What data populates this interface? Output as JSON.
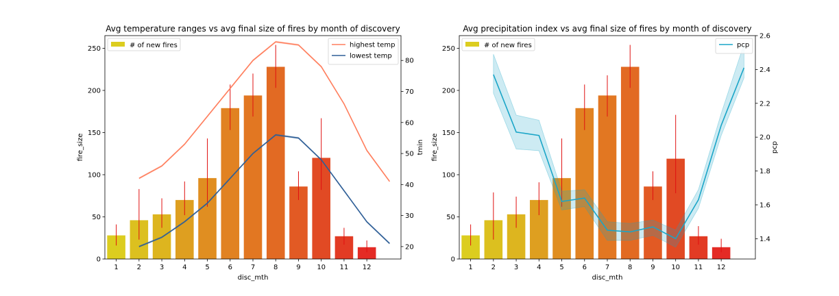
{
  "chart_data": [
    {
      "type": "bar",
      "title": "Avg temperature ranges vs avg final size of fires by month of discovery",
      "xlabel": "disc_mth",
      "ylabel": "fire_size",
      "ylabel_right": "tmin",
      "categories": [
        "1",
        "2",
        "3",
        "4",
        "5",
        "6",
        "7",
        "8",
        "9",
        "10",
        "11",
        "12"
      ],
      "ylim": [
        0,
        265
      ],
      "yticks": [
        "0",
        "50",
        "100",
        "150",
        "200",
        "250"
      ],
      "ylim_right": [
        16,
        88
      ],
      "yticks_right": [
        "20",
        "30",
        "40",
        "50",
        "60",
        "70",
        "80"
      ],
      "bars": {
        "name": "# of new fires",
        "values": [
          28,
          46,
          53,
          70,
          96,
          179,
          194,
          228,
          86,
          120,
          27,
          14
        ],
        "err_low": [
          16,
          23,
          37,
          52,
          62,
          153,
          169,
          203,
          70,
          82,
          17,
          8
        ],
        "err_high": [
          41,
          83,
          72,
          92,
          143,
          207,
          220,
          254,
          104,
          167,
          37,
          22
        ],
        "colors": [
          "#dccd1f",
          "#dcc01f",
          "#ddb51f",
          "#de9f20",
          "#e08e21",
          "#e18222",
          "#e27722",
          "#e26a23",
          "#e25a24",
          "#e14a24",
          "#e23b24",
          "#e42b25"
        ]
      },
      "series": [
        {
          "name": "highest temp",
          "color": "#ff7f5e",
          "x": [
            2,
            3,
            4,
            5,
            6,
            7,
            8,
            9,
            10,
            11,
            12,
            13
          ],
          "values": [
            42,
            46,
            53,
            62,
            71,
            80,
            86,
            85,
            78,
            66,
            51,
            41
          ]
        },
        {
          "name": "lowest temp",
          "color": "#2f5f97",
          "x": [
            2,
            3,
            4,
            5,
            6,
            7,
            8,
            9,
            10,
            11,
            12,
            13
          ],
          "values": [
            20,
            23,
            28,
            34,
            42,
            50,
            56,
            55,
            48,
            38,
            28,
            21
          ]
        }
      ],
      "legend_left": "upper-left",
      "legend_right": "upper-right"
    },
    {
      "type": "bar",
      "title": "Avg precipitation index vs avg final size of fires by month of discovery",
      "xlabel": "disc_mth",
      "ylabel": "fire_size",
      "ylabel_right": "pcp",
      "categories": [
        "1",
        "2",
        "3",
        "4",
        "5",
        "6",
        "7",
        "8",
        "9",
        "10",
        "11",
        "12"
      ],
      "ylim": [
        0,
        265
      ],
      "yticks": [
        "0",
        "50",
        "100",
        "150",
        "200",
        "250"
      ],
      "ylim_right": [
        1.28,
        2.6
      ],
      "yticks_right": [
        "1.4",
        "1.6",
        "1.8",
        "2.0",
        "2.2",
        "2.4",
        "2.6"
      ],
      "bars": {
        "name": "# of new fires",
        "values": [
          28,
          46,
          53,
          70,
          96,
          179,
          194,
          228,
          86,
          119,
          27,
          14
        ],
        "err_low": [
          16,
          23,
          37,
          52,
          62,
          153,
          169,
          203,
          70,
          78,
          17,
          8
        ],
        "err_high": [
          41,
          79,
          74,
          91,
          143,
          207,
          218,
          254,
          104,
          171,
          39,
          24
        ],
        "colors": [
          "#dccd1f",
          "#dcc01f",
          "#ddb51f",
          "#de9f20",
          "#e08e21",
          "#e18222",
          "#e27722",
          "#e26a23",
          "#e25a24",
          "#e14a24",
          "#e23b24",
          "#e42b25"
        ]
      },
      "series": [
        {
          "name": "pcp",
          "color": "#1aa5c7",
          "x": [
            2,
            3,
            4,
            5,
            6,
            7,
            8,
            9,
            10,
            11,
            12,
            13
          ],
          "values": [
            2.37,
            2.03,
            2.01,
            1.62,
            1.64,
            1.45,
            1.44,
            1.47,
            1.4,
            1.63,
            2.07,
            2.41
          ],
          "band_low": [
            2.26,
            1.93,
            1.92,
            1.57,
            1.59,
            1.39,
            1.39,
            1.42,
            1.35,
            1.58,
            2.01,
            2.35
          ],
          "band_high": [
            2.49,
            2.13,
            2.1,
            1.68,
            1.69,
            1.5,
            1.49,
            1.51,
            1.45,
            1.69,
            2.14,
            2.55
          ]
        }
      ],
      "legend_left": "upper-left",
      "legend_right": "upper-right"
    }
  ]
}
